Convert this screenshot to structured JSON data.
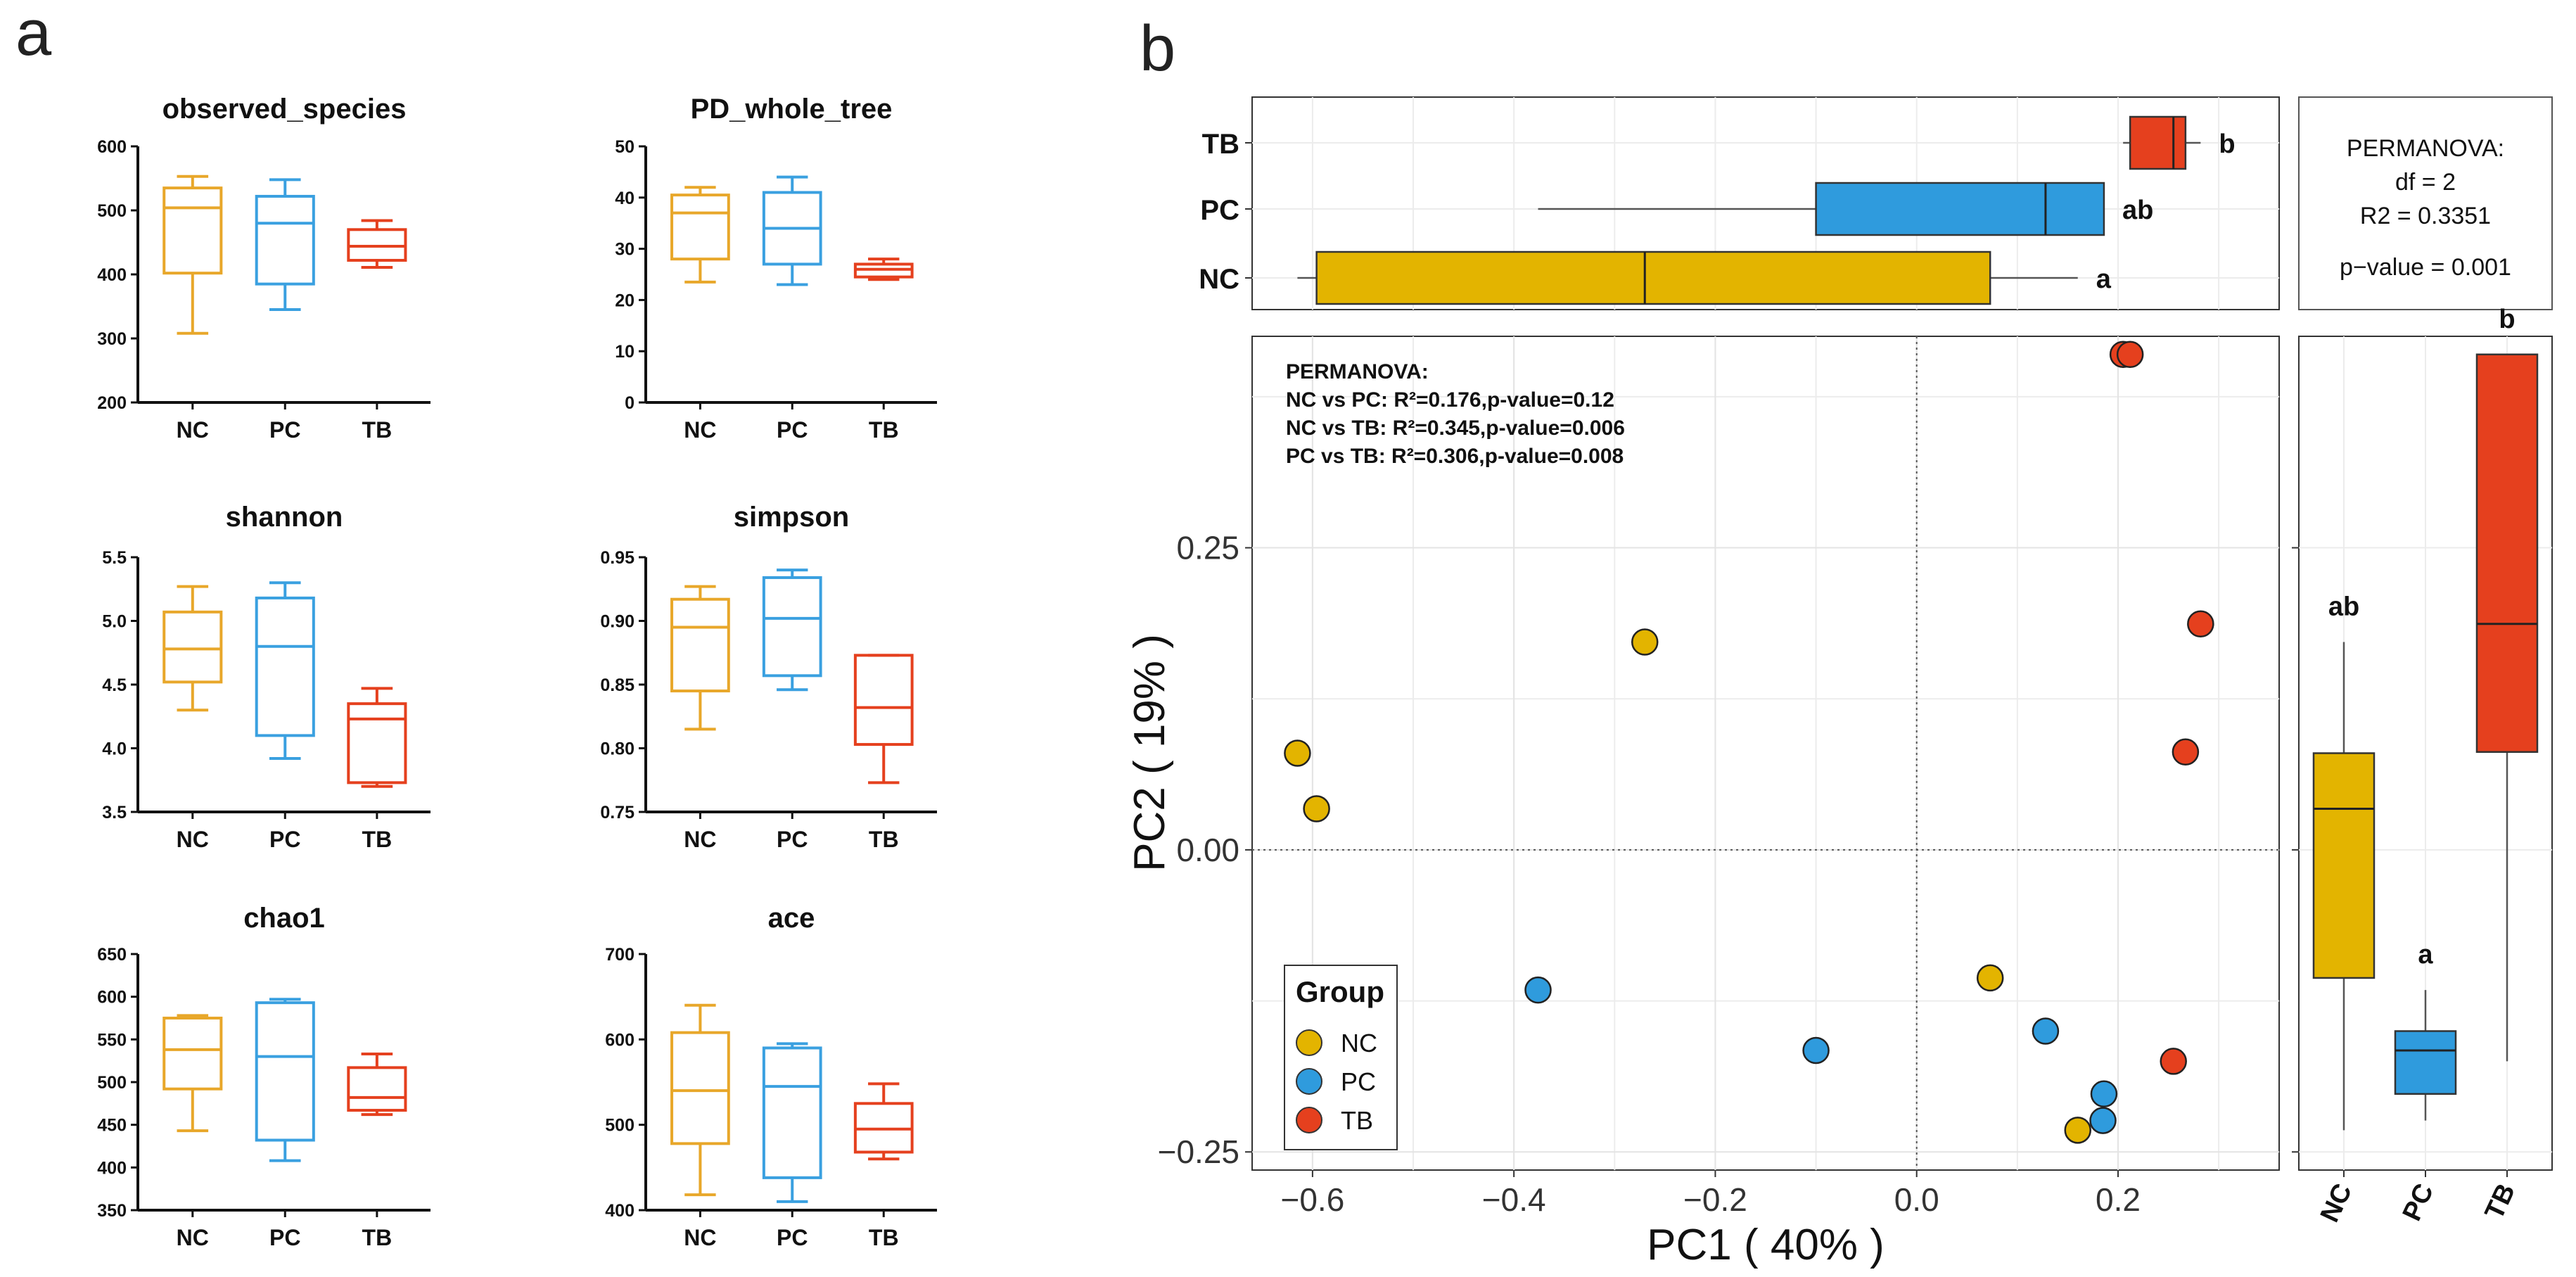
{
  "panel_labels": {
    "a": "a",
    "b": "b"
  },
  "colors": {
    "NC": "#E3B400",
    "PC": "#2F9BDD",
    "TB": "#E5401E",
    "NC_line": "#E8A72A",
    "PC_line": "#3AA0E0",
    "TB_line": "#E5401E"
  },
  "chart_data": [
    {
      "type": "box",
      "title": "observed_species",
      "categories": [
        "NC",
        "PC",
        "TB"
      ],
      "ylim": [
        200,
        600
      ],
      "yticks": [
        "200",
        "300",
        "400",
        "500",
        "600"
      ],
      "boxes": [
        {
          "min": 308,
          "q1": 402,
          "median": 504,
          "q3": 535,
          "max": 553
        },
        {
          "min": 345,
          "q1": 385,
          "median": 480,
          "q3": 522,
          "max": 548
        },
        {
          "min": 411,
          "q1": 422,
          "median": 444,
          "q3": 470,
          "max": 484
        }
      ]
    },
    {
      "type": "box",
      "title": "PD_whole_tree",
      "categories": [
        "NC",
        "PC",
        "TB"
      ],
      "ylim": [
        0,
        50
      ],
      "yticks": [
        "0",
        "10",
        "20",
        "30",
        "40",
        "50"
      ],
      "boxes": [
        {
          "min": 23.5,
          "q1": 28,
          "median": 37,
          "q3": 40.5,
          "max": 42
        },
        {
          "min": 23,
          "q1": 27,
          "median": 34,
          "q3": 41,
          "max": 44
        },
        {
          "min": 24,
          "q1": 24.5,
          "median": 26,
          "q3": 27,
          "max": 28
        }
      ]
    },
    {
      "type": "box",
      "title": "shannon",
      "categories": [
        "NC",
        "PC",
        "TB"
      ],
      "ylim": [
        3.5,
        5.5
      ],
      "yticks": [
        "3.5",
        "4.0",
        "4.5",
        "5.0",
        "5.5"
      ],
      "boxes": [
        {
          "min": 4.3,
          "q1": 4.52,
          "median": 4.78,
          "q3": 5.07,
          "max": 5.27
        },
        {
          "min": 3.92,
          "q1": 4.1,
          "median": 4.8,
          "q3": 5.18,
          "max": 5.3
        },
        {
          "min": 3.7,
          "q1": 3.73,
          "median": 4.23,
          "q3": 4.35,
          "max": 4.47
        }
      ]
    },
    {
      "type": "box",
      "title": "simpson",
      "categories": [
        "NC",
        "PC",
        "TB"
      ],
      "ylim": [
        0.75,
        0.95
      ],
      "yticks": [
        "0.75",
        "0.80",
        "0.85",
        "0.90",
        "0.95"
      ],
      "boxes": [
        {
          "min": 0.815,
          "q1": 0.845,
          "median": 0.895,
          "q3": 0.917,
          "max": 0.927
        },
        {
          "min": 0.846,
          "q1": 0.857,
          "median": 0.902,
          "q3": 0.934,
          "max": 0.94
        },
        {
          "min": 0.773,
          "q1": 0.803,
          "median": 0.832,
          "q3": 0.873,
          "max": 0.873
        }
      ]
    },
    {
      "type": "box",
      "title": "chao1",
      "categories": [
        "NC",
        "PC",
        "TB"
      ],
      "ylim": [
        350,
        650
      ],
      "yticks": [
        "350",
        "400",
        "450",
        "500",
        "550",
        "600",
        "650"
      ],
      "boxes": [
        {
          "min": 443,
          "q1": 492,
          "median": 538,
          "q3": 575,
          "max": 578
        },
        {
          "min": 408,
          "q1": 432,
          "median": 530,
          "q3": 593,
          "max": 597
        },
        {
          "min": 462,
          "q1": 467,
          "median": 482,
          "q3": 517,
          "max": 533
        }
      ]
    },
    {
      "type": "box",
      "title": "ace",
      "categories": [
        "NC",
        "PC",
        "TB"
      ],
      "ylim": [
        400,
        700
      ],
      "yticks": [
        "400",
        "500",
        "600",
        "700"
      ],
      "boxes": [
        {
          "min": 418,
          "q1": 478,
          "median": 540,
          "q3": 608,
          "max": 640
        },
        {
          "min": 410,
          "q1": 438,
          "median": 545,
          "q3": 590,
          "max": 595
        },
        {
          "min": 460,
          "q1": 468,
          "median": 495,
          "q3": 525,
          "max": 548
        }
      ]
    },
    {
      "type": "scatter",
      "xlabel": "PC1 ( 40% )",
      "ylabel": "PC2 ( 19% )",
      "xlim": [
        -0.66,
        0.36
      ],
      "ylim": [
        -0.265,
        0.425
      ],
      "xticks": [
        -0.6,
        -0.4,
        -0.2,
        0.0,
        0.2
      ],
      "xtick_labels": [
        "−0.6",
        "−0.4",
        "−0.2",
        "0.0",
        "0.2"
      ],
      "yticks": [
        -0.25,
        0.0,
        0.25
      ],
      "ytick_labels": [
        "−0.25",
        "0.00",
        "0.25"
      ],
      "points": [
        {
          "group": "NC",
          "x": -0.27,
          "y": 0.172
        },
        {
          "group": "NC",
          "x": -0.615,
          "y": 0.08
        },
        {
          "group": "NC",
          "x": -0.596,
          "y": 0.034
        },
        {
          "group": "NC",
          "x": 0.073,
          "y": -0.106
        },
        {
          "group": "NC",
          "x": 0.16,
          "y": -0.232
        },
        {
          "group": "PC",
          "x": -0.376,
          "y": -0.116
        },
        {
          "group": "PC",
          "x": -0.1,
          "y": -0.166
        },
        {
          "group": "PC",
          "x": 0.128,
          "y": -0.15
        },
        {
          "group": "PC",
          "x": 0.186,
          "y": -0.202
        },
        {
          "group": "PC",
          "x": 0.185,
          "y": -0.224
        },
        {
          "group": "TB",
          "x": 0.205,
          "y": 0.41
        },
        {
          "group": "TB",
          "x": 0.212,
          "y": 0.41
        },
        {
          "group": "TB",
          "x": 0.282,
          "y": 0.187
        },
        {
          "group": "TB",
          "x": 0.267,
          "y": 0.081
        },
        {
          "group": "TB",
          "x": 0.255,
          "y": -0.175
        }
      ],
      "annotation_lines": [
        "PERMANOVA:",
        "NC vs PC: R²=0.176,p-value=0.12",
        "NC vs TB: R²=0.345,p-value=0.006",
        "PC vs TB: R²=0.306,p-value=0.008"
      ],
      "legend": {
        "title": "Group",
        "entries": [
          "NC",
          "PC",
          "TB"
        ],
        "placement": "bottom-left"
      }
    },
    {
      "type": "box_horizontal",
      "axis": "PC1",
      "categories": [
        "NC",
        "PC",
        "TB"
      ],
      "letters": [
        "a",
        "ab",
        "b"
      ],
      "boxes": [
        {
          "min": -0.615,
          "q1": -0.596,
          "median": -0.27,
          "q3": 0.073,
          "max": 0.16
        },
        {
          "min": -0.376,
          "q1": -0.1,
          "median": 0.128,
          "q3": 0.186,
          "max": 0.186
        },
        {
          "min": 0.205,
          "q1": 0.212,
          "median": 0.255,
          "q3": 0.267,
          "max": 0.282
        }
      ]
    },
    {
      "type": "box_vertical",
      "axis": "PC2",
      "categories": [
        "NC",
        "PC",
        "TB"
      ],
      "letters": [
        "ab",
        "a",
        "b"
      ],
      "boxes": [
        {
          "min": -0.232,
          "q1": -0.106,
          "median": 0.034,
          "q3": 0.08,
          "max": 0.172
        },
        {
          "min": -0.224,
          "q1": -0.202,
          "median": -0.166,
          "q3": -0.15,
          "max": -0.116
        },
        {
          "min": -0.175,
          "q1": 0.081,
          "median": 0.187,
          "q3": 0.41,
          "max": 0.41
        }
      ]
    }
  ],
  "stats_box": {
    "lines": [
      "PERMANOVA:",
      "df = 2",
      "R2 = 0.3351",
      "p−value = 0.001"
    ]
  }
}
